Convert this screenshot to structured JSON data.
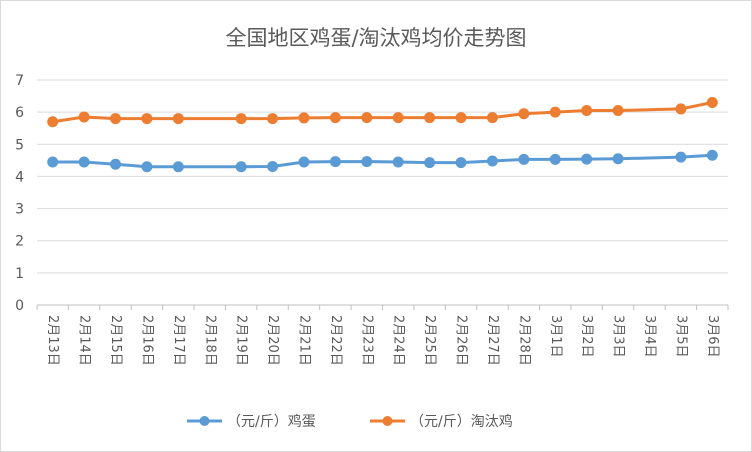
{
  "chart_data": {
    "type": "line",
    "title": "全国地区鸡蛋/淘汰鸡均价走势图",
    "categories": [
      "2月13日",
      "2月14日",
      "2月15日",
      "2月16日",
      "2月17日",
      "2月18日",
      "2月19日",
      "2月20日",
      "2月21日",
      "2月22日",
      "2月23日",
      "2月24日",
      "2月25日",
      "2月26日",
      "2月27日",
      "2月28日",
      "3月1日",
      "3月2日",
      "3月3日",
      "3月4日",
      "3月5日",
      "3月6日"
    ],
    "series": [
      {
        "name": "（元/斤）鸡蛋",
        "color": "#5b9bd5",
        "values": [
          4.45,
          4.45,
          4.38,
          4.3,
          4.3,
          null,
          4.3,
          4.31,
          4.45,
          4.46,
          4.46,
          4.45,
          4.43,
          4.43,
          4.48,
          4.53,
          4.53,
          4.54,
          4.55,
          null,
          4.6,
          4.66
        ]
      },
      {
        "name": "（元/斤）淘汰鸡",
        "color": "#ed7d31",
        "values": [
          5.7,
          5.85,
          5.8,
          5.8,
          5.8,
          null,
          5.8,
          5.8,
          5.82,
          5.83,
          5.83,
          5.83,
          5.83,
          5.83,
          5.83,
          5.95,
          6.0,
          6.05,
          6.05,
          null,
          6.1,
          6.3
        ]
      }
    ],
    "ylim": [
      0,
      7
    ],
    "yticks": [
      0,
      1,
      2,
      3,
      4,
      5,
      6,
      7
    ],
    "grid": true,
    "legend": "bottom"
  }
}
